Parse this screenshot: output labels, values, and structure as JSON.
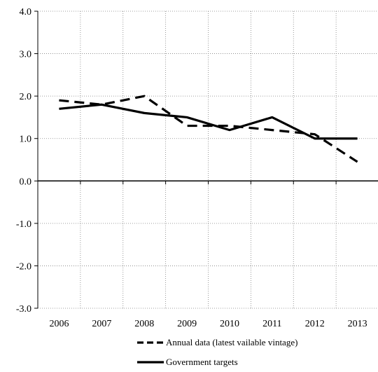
{
  "chart_data": {
    "type": "line",
    "title": "",
    "xlabel": "",
    "ylabel": "",
    "categories": [
      "2006",
      "2007",
      "2008",
      "2009",
      "2010",
      "2011",
      "2012",
      "2013"
    ],
    "ylim": [
      -3.0,
      4.0
    ],
    "yticks": [
      "4.0",
      "3.0",
      "2.0",
      "1.0",
      "0.0",
      "-1.0",
      "-2.0",
      "-3.0"
    ],
    "grid": "dotted",
    "legend_position": "bottom",
    "series": [
      {
        "name": "Annual data (latest vailable vintage)",
        "style": "dashed",
        "color": "#000000",
        "values": [
          1.9,
          1.8,
          2.0,
          1.3,
          1.3,
          1.2,
          1.1,
          0.45
        ]
      },
      {
        "name": "Government targets",
        "style": "solid",
        "color": "#000000",
        "values": [
          1.7,
          1.8,
          1.6,
          1.5,
          1.2,
          1.5,
          1.0,
          1.0
        ]
      }
    ]
  }
}
